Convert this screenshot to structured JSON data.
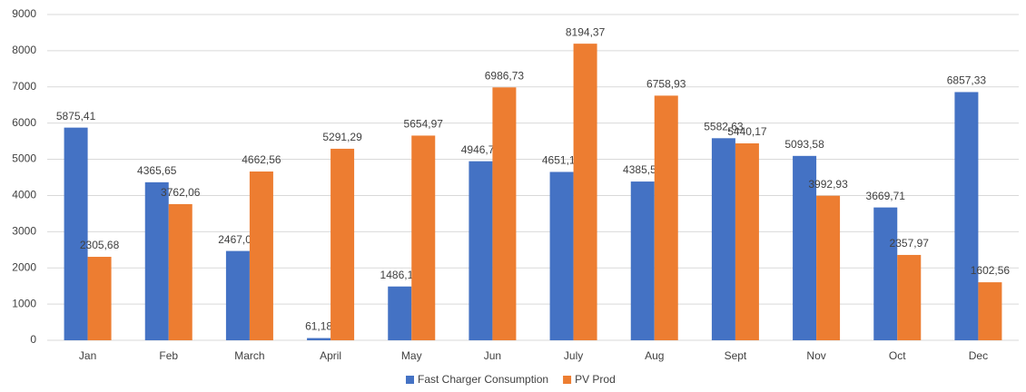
{
  "chart_data": {
    "type": "bar",
    "categories": [
      "Jan",
      "Feb",
      "March",
      "April",
      "May",
      "Jun",
      "July",
      "Aug",
      "Sept",
      "Nov",
      "Oct",
      "Dec"
    ],
    "series": [
      {
        "name": "Fast Charger Consumption",
        "color": "#4472c4",
        "values": [
          5875.41,
          4365.65,
          2467.06,
          61.18,
          1486.19,
          4946.79,
          4651.15,
          4385.55,
          5582.63,
          5093.58,
          3669.71,
          6857.33
        ],
        "value_labels": [
          "5875,41",
          "4365,65",
          "2467,06",
          "61,18",
          "1486,19",
          "4946,79",
          "4651,15",
          "4385,55",
          "5582,63",
          "5093,58",
          "3669,71",
          "6857,33"
        ]
      },
      {
        "name": "PV Prod",
        "color": "#ed7d31",
        "values": [
          2305.68,
          3762.06,
          4662.56,
          5291.29,
          5654.97,
          6986.73,
          8194.37,
          6758.93,
          5440.17,
          3992.93,
          2357.97,
          1602.56
        ],
        "value_labels": [
          "2305,68",
          "3762,06",
          "4662,56",
          "5291,29",
          "5654,97",
          "6986,73",
          "8194,37",
          "6758,93",
          "5440,17",
          "3992,93",
          "2357,97",
          "1602,56"
        ]
      }
    ],
    "ylim": [
      0,
      9000
    ],
    "yticks": [
      0,
      1000,
      2000,
      3000,
      4000,
      5000,
      6000,
      7000,
      8000,
      9000
    ],
    "grid": true,
    "legend": "bottom"
  }
}
